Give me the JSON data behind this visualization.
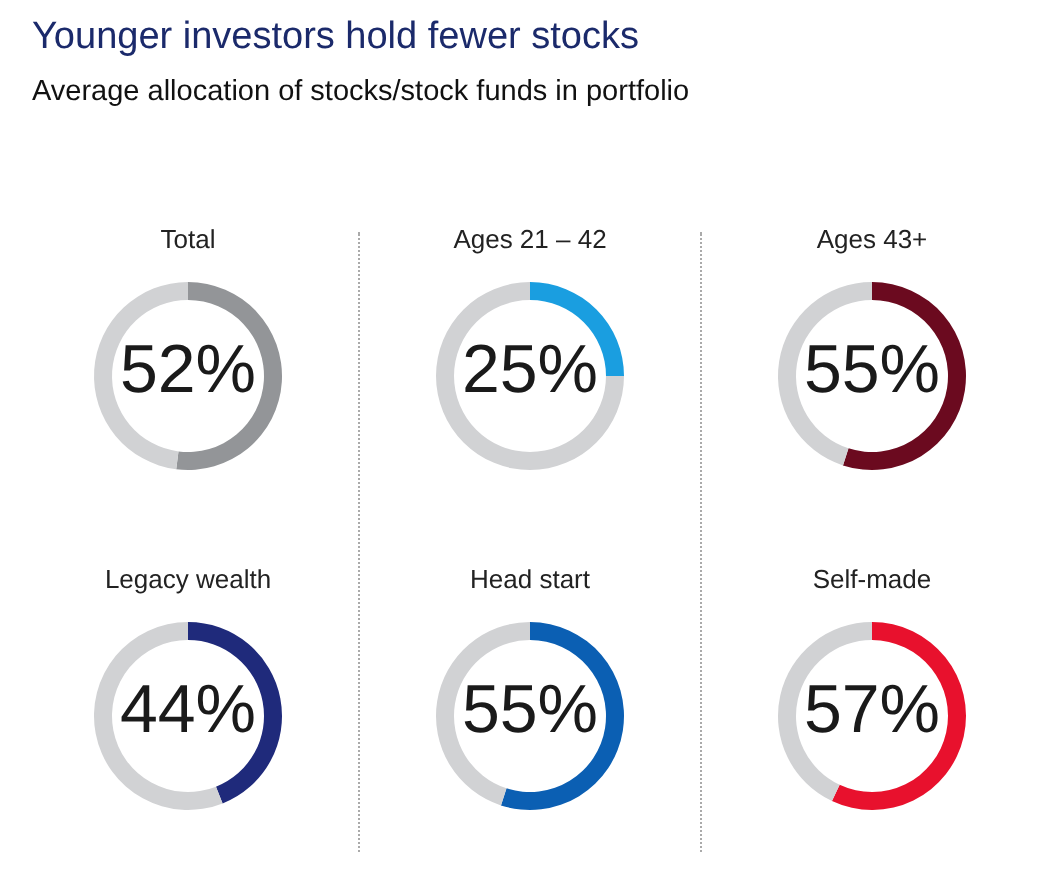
{
  "chart_data": [
    {
      "type": "other",
      "title": "Younger investors hold fewer stocks",
      "subtitle": "Average allocation of stocks/stock funds in portfolio"
    },
    {
      "type": "donut",
      "title": "Total",
      "categories": [
        null,
        null
      ],
      "values": [
        52,
        48
      ],
      "colors": [
        "#939598",
        "#d1d2d4"
      ],
      "annotations": [
        "52%"
      ]
    },
    {
      "type": "donut",
      "title": "Ages 21 – 42",
      "categories": [
        null,
        null
      ],
      "values": [
        25,
        75
      ],
      "colors": [
        "#1a9ee0",
        "#d1d2d4"
      ],
      "annotations": [
        "25%"
      ]
    },
    {
      "type": "donut",
      "title": "Ages 43+",
      "categories": [
        null,
        null
      ],
      "values": [
        55,
        45
      ],
      "colors": [
        "#6b0a1f",
        "#d1d2d4"
      ],
      "annotations": [
        "55%"
      ]
    },
    {
      "type": "donut",
      "title": "Legacy wealth",
      "categories": [
        null,
        null
      ],
      "values": [
        44,
        56
      ],
      "colors": [
        "#1f2a7b",
        "#d1d2d4"
      ],
      "annotations": [
        "44%"
      ]
    },
    {
      "type": "donut",
      "title": "Head start",
      "categories": [
        null,
        null
      ],
      "values": [
        55,
        45
      ],
      "colors": [
        "#0b5fb3",
        "#d1d2d4"
      ],
      "annotations": [
        "55%"
      ]
    },
    {
      "type": "donut",
      "title": "Self-made",
      "categories": [
        null,
        null
      ],
      "values": [
        57,
        43
      ],
      "colors": [
        "#e8112d",
        "#d1d2d4"
      ],
      "annotations": [
        "57%"
      ]
    }
  ]
}
